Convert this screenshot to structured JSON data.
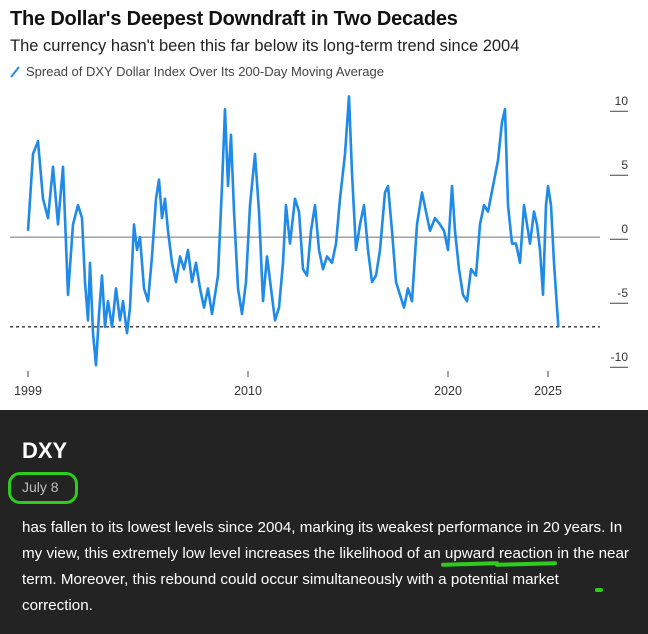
{
  "chart_data": {
    "type": "line",
    "title": "The Dollar's Deepest Downdraft in Two Decades",
    "subtitle": "The currency hasn't been this far below its long-term trend since 2004",
    "series": [
      {
        "name": "Spread of DXY Dollar Index Over Its 200-Day Moving Average",
        "color": "#1f8ae8",
        "points": [
          [
            1999.0,
            0.5
          ],
          [
            1999.25,
            6.5
          ],
          [
            1999.5,
            7.5
          ],
          [
            1999.75,
            3.0
          ],
          [
            2000.0,
            1.5
          ],
          [
            2000.25,
            5.5
          ],
          [
            2000.5,
            1.0
          ],
          [
            2000.75,
            5.5
          ],
          [
            2001.0,
            -4.5
          ],
          [
            2001.25,
            1.0
          ],
          [
            2001.5,
            2.5
          ],
          [
            2001.7,
            1.5
          ],
          [
            2001.85,
            -3.5
          ],
          [
            2002.0,
            -6.5
          ],
          [
            2002.1,
            -2.0
          ],
          [
            2002.25,
            -7.5
          ],
          [
            2002.4,
            -10.0
          ],
          [
            2002.55,
            -6.0
          ],
          [
            2002.7,
            -3.0
          ],
          [
            2002.85,
            -7.0
          ],
          [
            2003.0,
            -5.0
          ],
          [
            2003.2,
            -7.0
          ],
          [
            2003.4,
            -4.0
          ],
          [
            2003.6,
            -6.5
          ],
          [
            2003.75,
            -5.0
          ],
          [
            2003.95,
            -7.5
          ],
          [
            2004.1,
            -5.5
          ],
          [
            2004.3,
            1.0
          ],
          [
            2004.45,
            -1.0
          ],
          [
            2004.6,
            0.0
          ],
          [
            2004.8,
            -4.0
          ],
          [
            2005.0,
            -5.0
          ],
          [
            2005.2,
            -1.5
          ],
          [
            2005.4,
            3.0
          ],
          [
            2005.55,
            4.5
          ],
          [
            2005.7,
            1.5
          ],
          [
            2005.85,
            3.0
          ],
          [
            2006.0,
            0.5
          ],
          [
            2006.2,
            -2.0
          ],
          [
            2006.4,
            -3.5
          ],
          [
            2006.6,
            -1.5
          ],
          [
            2006.8,
            -2.5
          ],
          [
            2007.0,
            -1.0
          ],
          [
            2007.2,
            -3.5
          ],
          [
            2007.4,
            -2.0
          ],
          [
            2007.6,
            -4.0
          ],
          [
            2007.8,
            -5.5
          ],
          [
            2008.0,
            -4.0
          ],
          [
            2008.2,
            -6.0
          ],
          [
            2008.5,
            -3.0
          ],
          [
            2008.7,
            4.0
          ],
          [
            2008.85,
            10.0
          ],
          [
            2009.0,
            4.0
          ],
          [
            2009.15,
            8.0
          ],
          [
            2009.3,
            2.0
          ],
          [
            2009.5,
            -4.0
          ],
          [
            2009.7,
            -6.0
          ],
          [
            2009.9,
            -3.5
          ],
          [
            2010.1,
            2.5
          ],
          [
            2010.35,
            6.5
          ],
          [
            2010.55,
            2.0
          ],
          [
            2010.75,
            -5.0
          ],
          [
            2010.95,
            -1.5
          ],
          [
            2011.15,
            -4.0
          ],
          [
            2011.35,
            -6.5
          ],
          [
            2011.55,
            -5.5
          ],
          [
            2011.75,
            -2.0
          ],
          [
            2011.9,
            2.5
          ],
          [
            2012.1,
            -0.5
          ],
          [
            2012.35,
            3.0
          ],
          [
            2012.55,
            2.0
          ],
          [
            2012.75,
            -2.5
          ],
          [
            2012.95,
            -3.0
          ],
          [
            2013.15,
            0.5
          ],
          [
            2013.35,
            2.5
          ],
          [
            2013.55,
            -1.0
          ],
          [
            2013.75,
            -2.5
          ],
          [
            2013.95,
            -1.5
          ],
          [
            2014.2,
            -2.0
          ],
          [
            2014.4,
            -0.5
          ],
          [
            2014.6,
            3.0
          ],
          [
            2014.85,
            6.5
          ],
          [
            2015.05,
            11.0
          ],
          [
            2015.2,
            5.0
          ],
          [
            2015.4,
            -1.0
          ],
          [
            2015.6,
            1.0
          ],
          [
            2015.8,
            2.5
          ],
          [
            2016.0,
            -1.0
          ],
          [
            2016.2,
            -3.5
          ],
          [
            2016.4,
            -3.0
          ],
          [
            2016.6,
            -1.0
          ],
          [
            2016.85,
            3.5
          ],
          [
            2017.0,
            4.0
          ],
          [
            2017.2,
            0.5
          ],
          [
            2017.4,
            -3.5
          ],
          [
            2017.6,
            -4.5
          ],
          [
            2017.8,
            -5.5
          ],
          [
            2018.0,
            -4.0
          ],
          [
            2018.2,
            -5.0
          ],
          [
            2018.45,
            1.0
          ],
          [
            2018.7,
            3.5
          ],
          [
            2018.9,
            2.0
          ],
          [
            2019.1,
            0.5
          ],
          [
            2019.35,
            1.5
          ],
          [
            2019.6,
            1.0
          ],
          [
            2019.8,
            0.5
          ],
          [
            2020.0,
            -1.0
          ],
          [
            2020.2,
            4.0
          ],
          [
            2020.35,
            0.5
          ],
          [
            2020.55,
            -2.5
          ],
          [
            2020.75,
            -4.5
          ],
          [
            2020.95,
            -5.0
          ],
          [
            2021.15,
            -2.5
          ],
          [
            2021.4,
            -3.0
          ],
          [
            2021.6,
            1.0
          ],
          [
            2021.8,
            2.5
          ],
          [
            2022.0,
            2.0
          ],
          [
            2022.25,
            4.0
          ],
          [
            2022.5,
            6.0
          ],
          [
            2022.7,
            9.0
          ],
          [
            2022.85,
            10.0
          ],
          [
            2023.0,
            2.5
          ],
          [
            2023.2,
            -0.5
          ],
          [
            2023.4,
            -0.5
          ],
          [
            2023.6,
            -2.0
          ],
          [
            2023.8,
            2.5
          ],
          [
            2023.95,
            1.0
          ],
          [
            2024.1,
            -0.5
          ],
          [
            2024.3,
            2.0
          ],
          [
            2024.45,
            1.0
          ],
          [
            2024.6,
            -1.0
          ],
          [
            2024.75,
            -4.5
          ],
          [
            2024.9,
            2.5
          ],
          [
            2025.0,
            4.0
          ],
          [
            2025.15,
            2.5
          ],
          [
            2025.3,
            -2.0
          ],
          [
            2025.45,
            -5.5
          ],
          [
            2025.52,
            -7.0
          ]
        ]
      }
    ],
    "reference_lines": [
      {
        "y": 0,
        "color": "#a9a9a9",
        "style": "solid"
      },
      {
        "y": -7,
        "color": "#333333",
        "style": "dashed"
      }
    ],
    "xlim": [
      1999,
      2026.5
    ],
    "ylim": [
      -11,
      11.5
    ],
    "x_ticks": [
      1999,
      2010,
      2020,
      2025
    ],
    "y_ticks": [
      10,
      5,
      0,
      -5,
      -10
    ],
    "y_axis_side": "right",
    "grid": false
  },
  "post": {
    "ticker": "DXY",
    "date": "July 8",
    "text_1": "has fallen to its lowest levels since 2004, marking its weakest performance in 20 years. In my view, this extremely low level increases the likelihood of an ",
    "hl_1": "upward",
    "text_2": " ",
    "hl_2": "reaction",
    "text_3": " in the ",
    "hl_3": "near term",
    "text_4": ". Moreover, this rebound could occur simultaneously with a potential market correction.",
    "highlight_color": "#2ecc1d"
  }
}
